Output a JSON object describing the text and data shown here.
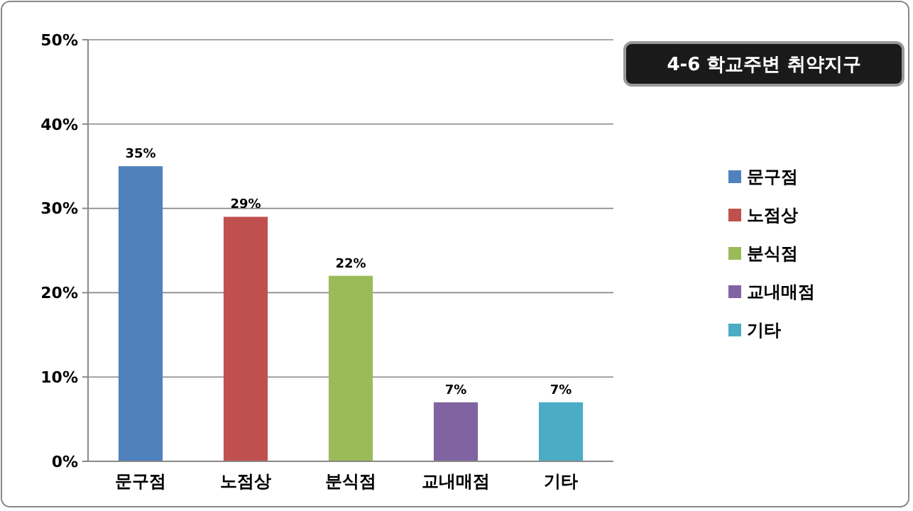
{
  "chart_data": {
    "type": "bar",
    "title": "4-6 학교주변 취약지구",
    "categories": [
      "문구점",
      "노점상",
      "분식점",
      "교내매점",
      "기타"
    ],
    "series": [
      {
        "name": "문구점",
        "color": "#4f81bd",
        "values": [
          35,
          null,
          null,
          null,
          null
        ],
        "value_labels": [
          "35%",
          null,
          null,
          null,
          null
        ]
      },
      {
        "name": "노점상",
        "color": "#c0504d",
        "values": [
          null,
          29,
          null,
          null,
          null
        ],
        "value_labels": [
          null,
          "29%",
          null,
          null,
          null
        ]
      },
      {
        "name": "분식점",
        "color": "#9bbb59",
        "values": [
          null,
          null,
          22,
          null,
          null
        ],
        "value_labels": [
          null,
          null,
          "22%",
          null,
          null
        ]
      },
      {
        "name": "교내매점",
        "color": "#8064a2",
        "values": [
          null,
          null,
          null,
          7,
          null
        ],
        "value_labels": [
          null,
          null,
          null,
          "7%",
          null
        ]
      },
      {
        "name": "기타",
        "color": "#4bacc6",
        "values": [
          null,
          null,
          null,
          null,
          7
        ],
        "value_labels": [
          null,
          null,
          null,
          null,
          "7%"
        ]
      }
    ],
    "ylim": [
      0,
      50
    ],
    "yticks": [
      {
        "value": 0,
        "label": "0%"
      },
      {
        "value": 10,
        "label": "10%"
      },
      {
        "value": 20,
        "label": "20%"
      },
      {
        "value": 30,
        "label": "30%"
      },
      {
        "value": 40,
        "label": "40%"
      },
      {
        "value": 50,
        "label": "50%"
      }
    ],
    "grid": "y",
    "legend": "right"
  }
}
